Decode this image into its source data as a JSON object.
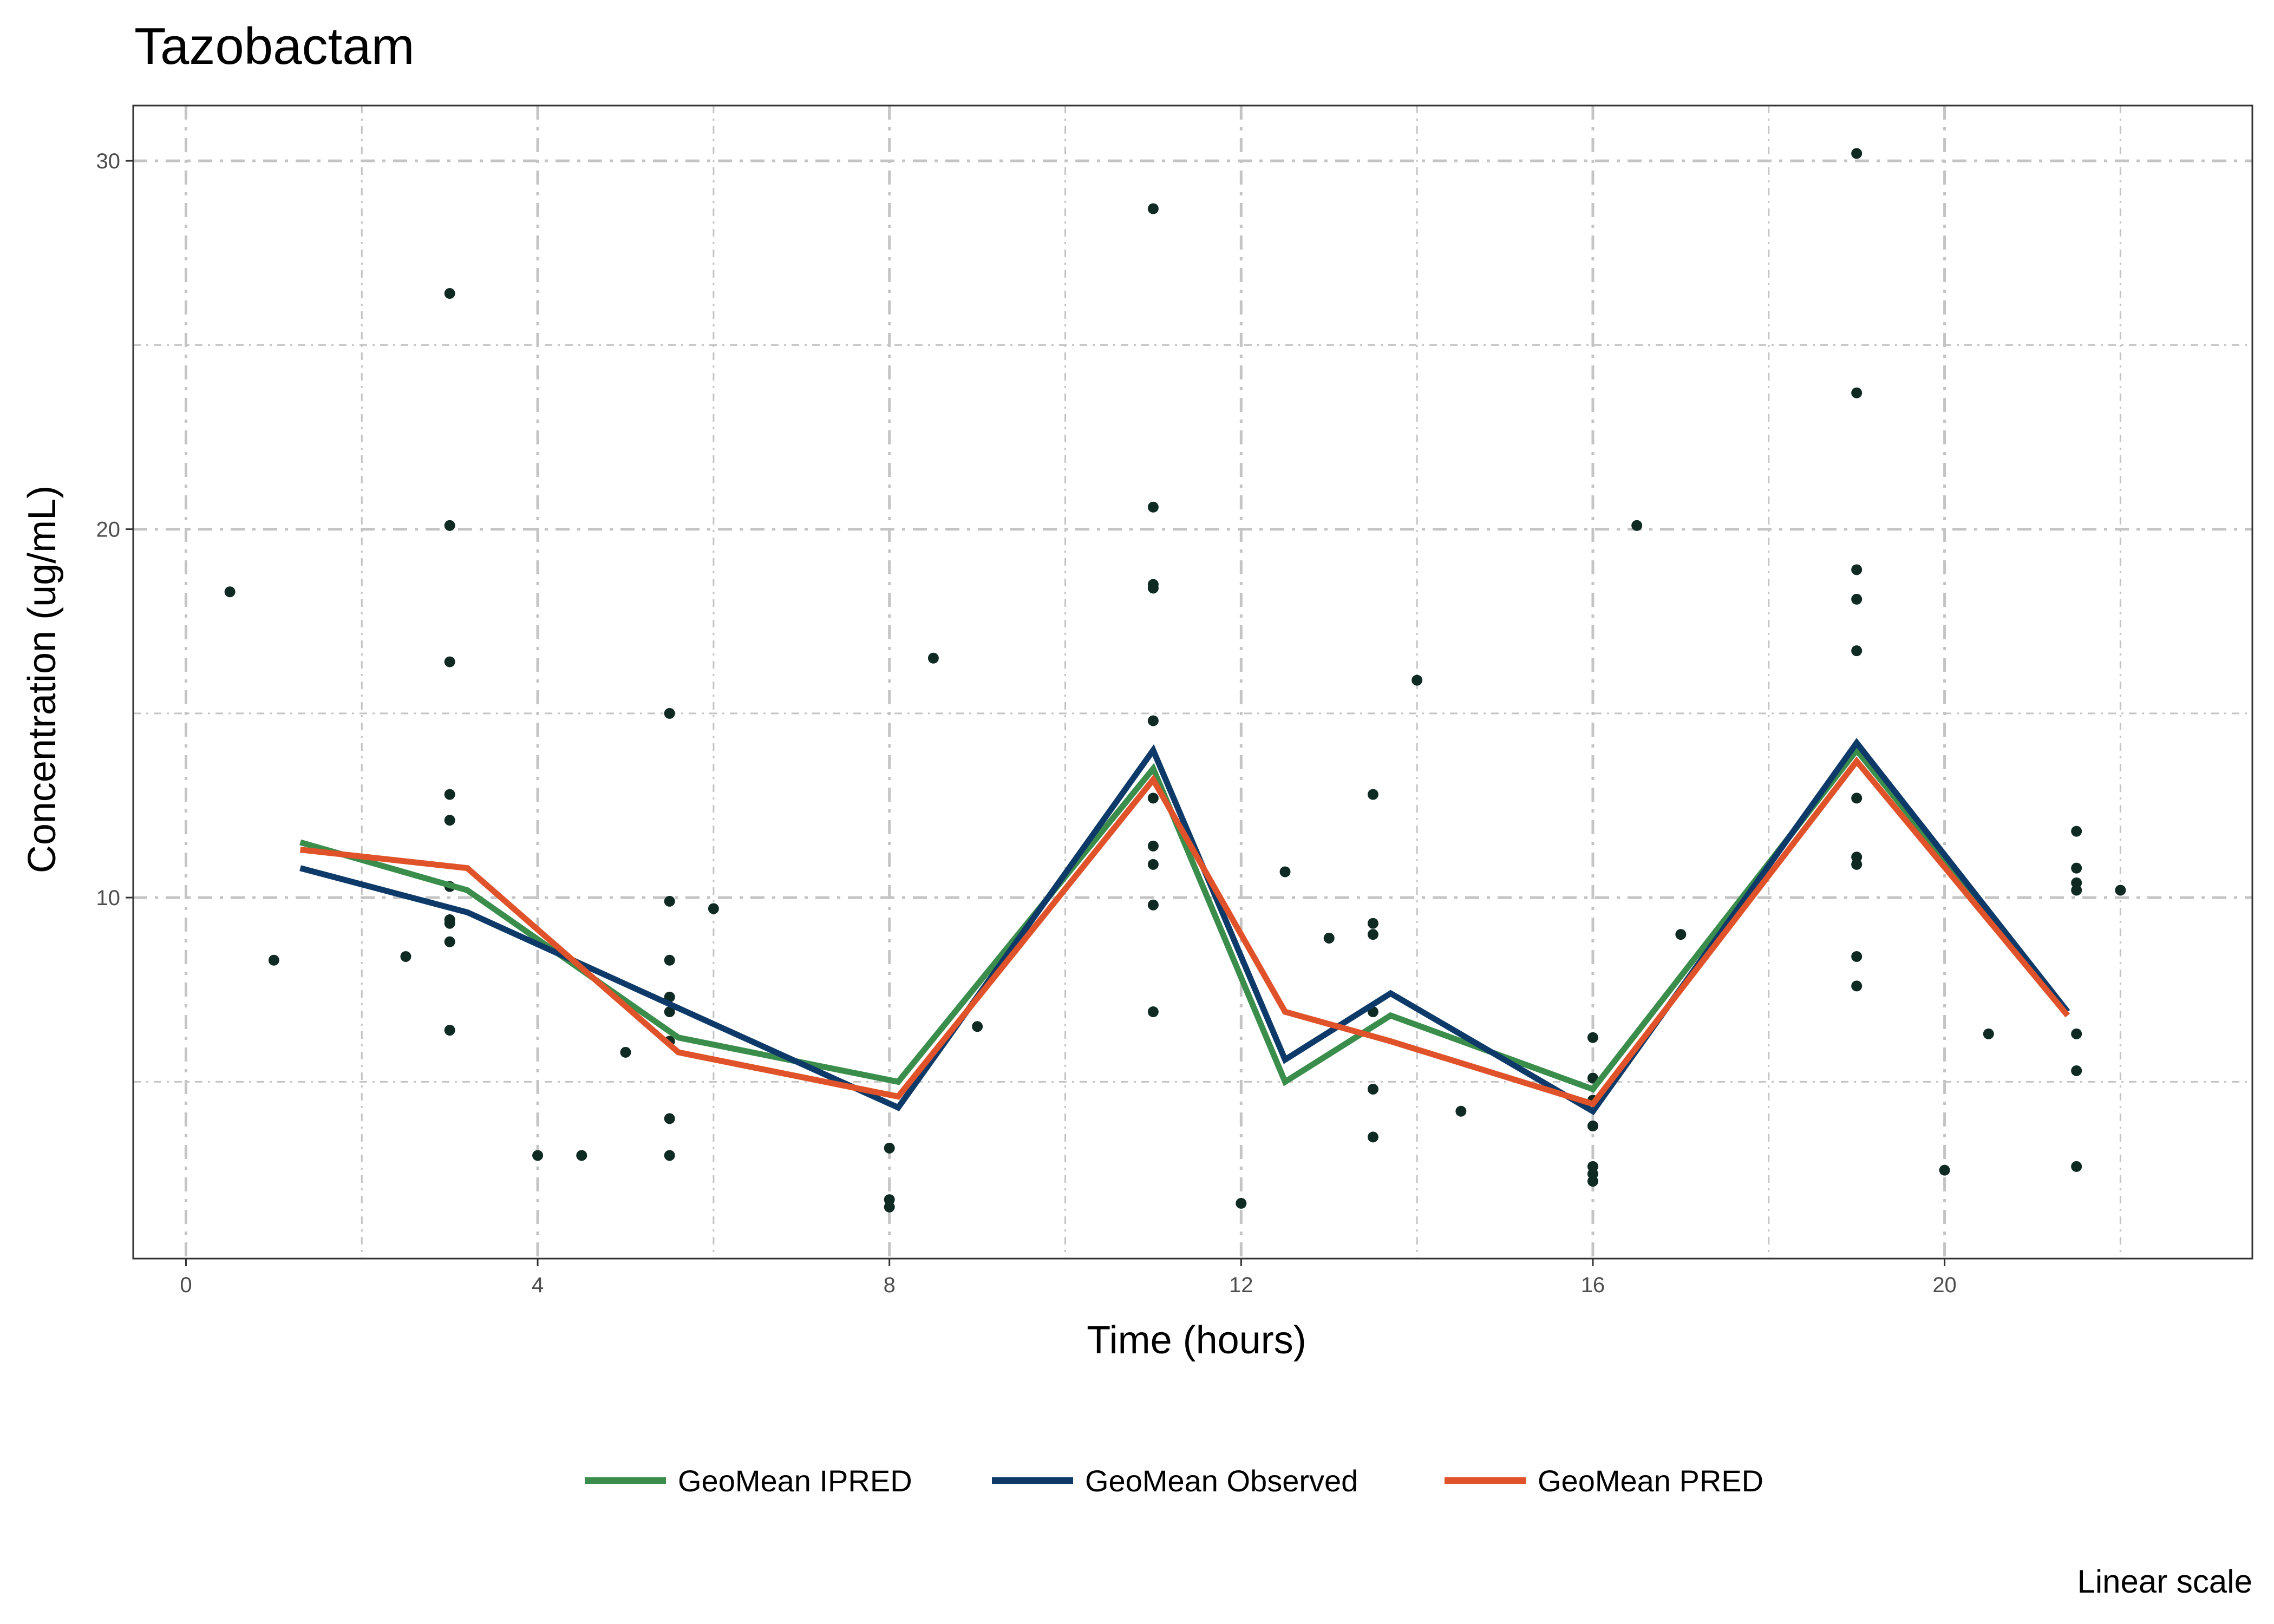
{
  "chart_data": {
    "type": "line",
    "title": "Tazobactam",
    "xlabel": "Time (hours)",
    "ylabel": "Concentration (ug/mL)",
    "caption": "Linear scale",
    "xlim": [
      -0.6,
      23.5
    ],
    "ylim": [
      0.2,
      31.5
    ],
    "x_ticks": [
      0,
      4,
      8,
      12,
      16,
      20
    ],
    "x_tick_labels": [
      "0",
      "4",
      "8",
      "12",
      "16",
      "20"
    ],
    "y_ticks": [
      10,
      20,
      30
    ],
    "y_tick_labels": [
      "10",
      "20",
      "30"
    ],
    "x_minor_grid": [
      2,
      6,
      10,
      14,
      18,
      22
    ],
    "y_minor_grid": [
      5,
      15,
      25
    ],
    "grid": true,
    "legend_position": "bottom",
    "series": [
      {
        "name": "GeoMean IPRED",
        "color": "#3a8d4b",
        "x": [
          1.3,
          3.2,
          5.6,
          8.1,
          11.0,
          12.5,
          13.7,
          16.0,
          19.0,
          21.4
        ],
        "y": [
          11.5,
          10.2,
          6.2,
          5.0,
          13.5,
          5.0,
          6.8,
          4.8,
          14.0,
          6.9
        ]
      },
      {
        "name": "GeoMean Observed",
        "color": "#0e3a69",
        "x": [
          1.3,
          3.2,
          5.6,
          8.1,
          11.0,
          12.5,
          13.7,
          16.0,
          19.0,
          21.4
        ],
        "y": [
          10.8,
          9.6,
          7.0,
          4.3,
          14.0,
          5.6,
          7.4,
          4.2,
          14.2,
          6.9
        ]
      },
      {
        "name": "GeoMean PRED",
        "color": "#e0522a",
        "x": [
          1.3,
          3.2,
          5.6,
          8.1,
          11.0,
          12.5,
          13.7,
          16.0,
          19.0,
          21.4
        ],
        "y": [
          11.3,
          10.8,
          5.8,
          4.6,
          13.2,
          6.9,
          6.1,
          4.4,
          13.7,
          6.8
        ]
      }
    ],
    "observed_points": {
      "color": "#0f2a23",
      "x": [
        0.5,
        1.0,
        2.5,
        3.0,
        3.0,
        3.0,
        3.0,
        3.0,
        3.0,
        3.0,
        3.0,
        3.0,
        3.0,
        4.0,
        4.5,
        5.0,
        5.5,
        5.5,
        5.5,
        5.5,
        5.5,
        5.5,
        5.5,
        5.5,
        6.0,
        8.0,
        8.0,
        8.0,
        8.5,
        9.0,
        11.0,
        11.0,
        11.0,
        11.0,
        11.0,
        11.0,
        11.0,
        11.0,
        11.0,
        11.0,
        12.0,
        12.5,
        13.0,
        13.5,
        13.5,
        13.5,
        13.5,
        13.5,
        13.5,
        14.0,
        14.5,
        16.0,
        16.0,
        16.0,
        16.0,
        16.0,
        16.0,
        16.0,
        16.5,
        17.0,
        19.0,
        19.0,
        19.0,
        19.0,
        19.0,
        19.0,
        19.0,
        19.0,
        19.0,
        19.0,
        20.0,
        20.5,
        21.5,
        21.5,
        21.5,
        21.5,
        21.5,
        21.5,
        21.5,
        22.0
      ],
      "y": [
        18.3,
        8.3,
        8.4,
        26.4,
        20.1,
        16.4,
        12.8,
        12.1,
        10.3,
        9.4,
        9.3,
        8.8,
        6.4,
        3.0,
        3.0,
        5.8,
        15.0,
        9.9,
        8.3,
        7.3,
        6.9,
        6.1,
        4.0,
        3.0,
        9.7,
        3.2,
        1.8,
        1.6,
        16.5,
        6.5,
        28.7,
        20.6,
        18.5,
        18.4,
        14.8,
        12.7,
        11.4,
        10.9,
        9.8,
        6.9,
        1.7,
        10.7,
        8.9,
        12.8,
        9.3,
        9.0,
        6.9,
        4.8,
        3.5,
        15.9,
        4.2,
        6.2,
        5.1,
        3.8,
        2.7,
        2.5,
        2.3,
        4.5,
        20.1,
        9.0,
        30.2,
        23.7,
        18.9,
        18.1,
        16.7,
        11.1,
        10.9,
        8.4,
        7.6,
        12.7,
        2.6,
        6.3,
        11.8,
        10.8,
        10.4,
        10.2,
        6.3,
        5.3,
        2.7,
        10.2
      ]
    }
  }
}
